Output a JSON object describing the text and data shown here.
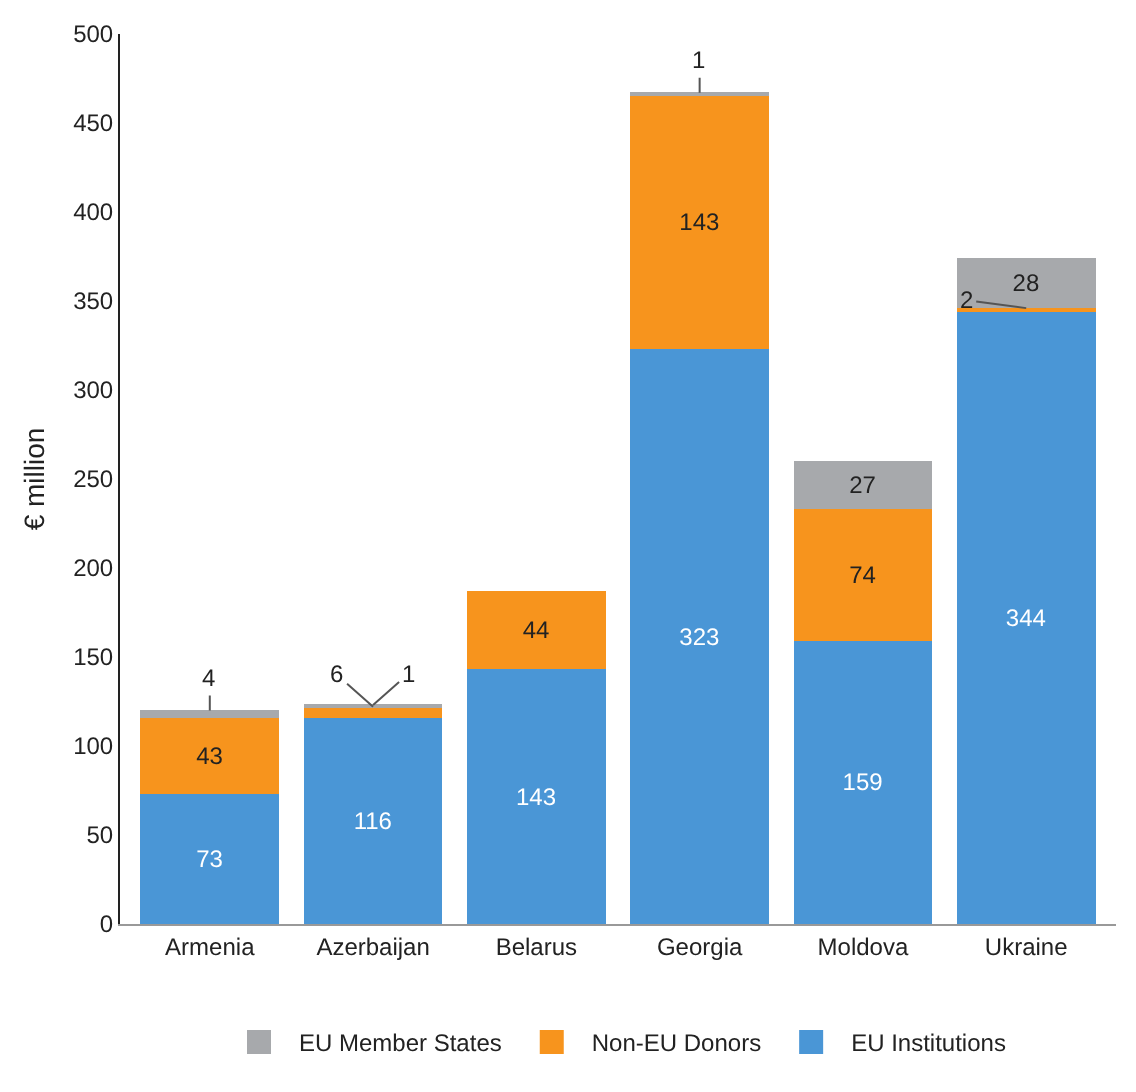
{
  "chart_data": {
    "type": "bar",
    "stacked": true,
    "ylabel": "€ million",
    "categories": [
      "Armenia",
      "Azerbaijan",
      "Belarus",
      "Georgia",
      "Moldova",
      "Ukraine"
    ],
    "series": [
      {
        "name": "EU Institutions",
        "color": "#4a96d6",
        "values": [
          73,
          116,
          143,
          323,
          159,
          344
        ]
      },
      {
        "name": "Non-EU Donors",
        "color": "#f7941d",
        "values": [
          43,
          6,
          44,
          143,
          74,
          2
        ]
      },
      {
        "name": "EU Member States",
        "color": "#a7a9ac",
        "values": [
          4,
          1,
          null,
          1,
          27,
          28
        ]
      }
    ],
    "ylim": [
      0,
      500
    ],
    "yticks": [
      0,
      50,
      100,
      150,
      200,
      250,
      300,
      350,
      400,
      450,
      500
    ],
    "data_labels": true,
    "grid": false,
    "legend": "bottom"
  }
}
